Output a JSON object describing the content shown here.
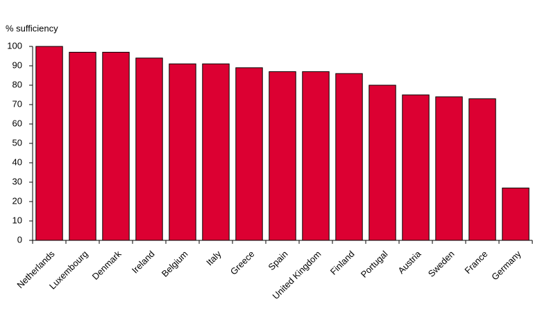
{
  "chart_data": {
    "type": "bar",
    "y_axis_label": "% sufficiency",
    "categories": [
      "Netherlands",
      "Luxembourg",
      "Denmark",
      "Ireland",
      "Belgium",
      "Italy",
      "Greece",
      "Spain",
      "United Kingdom",
      "Finland",
      "Portugal",
      "Austria",
      "Sweden",
      "France",
      "Germany"
    ],
    "values": [
      100,
      97,
      97,
      94,
      91,
      91,
      89,
      87,
      87,
      86,
      80,
      75,
      74,
      73,
      27
    ],
    "color": "#dc0032",
    "ylim": [
      0,
      100
    ],
    "yticks": [
      0,
      10,
      20,
      30,
      40,
      50,
      60,
      70,
      80,
      90,
      100
    ],
    "grid": false
  }
}
